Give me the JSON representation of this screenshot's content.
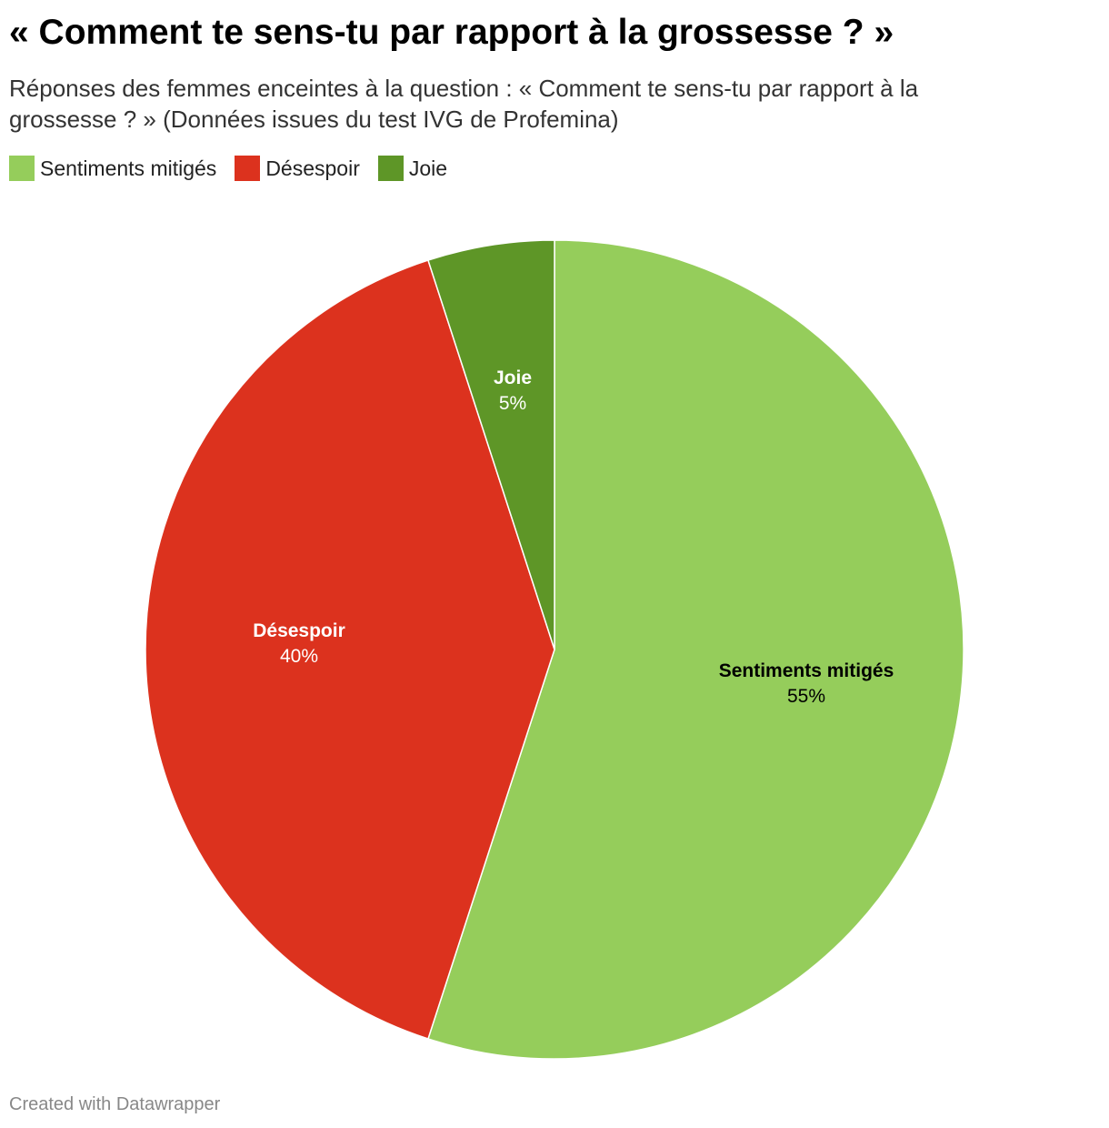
{
  "header": {
    "title": "« Comment te sens-tu par rapport à la grossesse ? »",
    "subtitle": "Réponses des femmes enceintes à la question : « Comment te sens-tu par rapport à la grossesse ? » (Données issues du test IVG de Profemina)"
  },
  "legend": {
    "items": [
      {
        "label": "Sentiments mitigés",
        "color": "#95cd5b"
      },
      {
        "label": "Désespoir",
        "color": "#dc321e"
      },
      {
        "label": "Joie",
        "color": "#5e9627"
      }
    ]
  },
  "chart_data": {
    "type": "pie",
    "title": "« Comment te sens-tu par rapport à la grossesse ? »",
    "subtitle": "Réponses des femmes enceintes à la question : « Comment te sens-tu par rapport à la grossesse ? » (Données issues du test IVG de Profemina)",
    "legend_position": "top-left",
    "slices": [
      {
        "label": "Sentiments mitigés",
        "value": 55,
        "display": "55%",
        "color": "#95cd5b",
        "label_color": "#000000"
      },
      {
        "label": "Désespoir",
        "value": 40,
        "display": "40%",
        "color": "#dc321e",
        "label_color": "#ffffff"
      },
      {
        "label": "Joie",
        "value": 5,
        "display": "5%",
        "color": "#5e9627",
        "label_color": "#ffffff"
      }
    ]
  },
  "footer": {
    "credit": "Created with Datawrapper"
  }
}
